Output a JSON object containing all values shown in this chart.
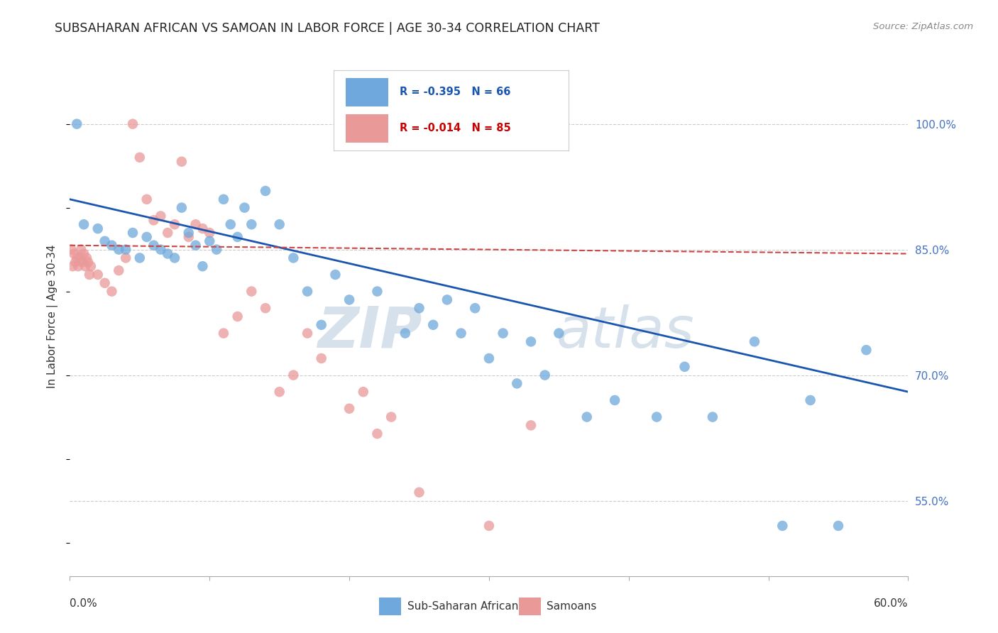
{
  "title": "SUBSAHARAN AFRICAN VS SAMOAN IN LABOR FORCE | AGE 30-34 CORRELATION CHART",
  "source": "Source: ZipAtlas.com",
  "ylabel": "In Labor Force | Age 30-34",
  "yticks": [
    55.0,
    70.0,
    85.0,
    100.0
  ],
  "ytick_labels": [
    "55.0%",
    "70.0%",
    "85.0%",
    "100.0%"
  ],
  "legend_blue_label": "Sub-Saharan Africans",
  "legend_pink_label": "Samoans",
  "legend_blue_r": "R = -0.395",
  "legend_blue_n": "N = 66",
  "legend_pink_r": "R = -0.014",
  "legend_pink_n": "N = 85",
  "blue_color": "#6fa8dc",
  "pink_color": "#ea9999",
  "blue_line_color": "#1a56b0",
  "pink_line_color": "#cc4444",
  "watermark_zip": "ZIP",
  "watermark_atlas": "atlas",
  "blue_scatter_x": [
    0.5,
    1.0,
    2.0,
    2.5,
    3.0,
    3.5,
    4.0,
    4.5,
    5.0,
    5.5,
    6.0,
    6.5,
    7.0,
    7.5,
    8.0,
    8.5,
    9.0,
    9.5,
    10.0,
    10.5,
    11.0,
    11.5,
    12.0,
    12.5,
    13.0,
    14.0,
    15.0,
    16.0,
    17.0,
    18.0,
    19.0,
    20.0,
    22.0,
    24.0,
    25.0,
    26.0,
    27.0,
    28.0,
    29.0,
    30.0,
    31.0,
    32.0,
    33.0,
    34.0,
    35.0,
    37.0,
    39.0,
    42.0,
    44.0,
    46.0,
    49.0,
    51.0,
    53.0,
    55.0,
    57.0
  ],
  "blue_scatter_y": [
    100.0,
    88.0,
    87.5,
    86.0,
    85.5,
    85.0,
    85.0,
    87.0,
    84.0,
    86.5,
    85.5,
    85.0,
    84.5,
    84.0,
    90.0,
    87.0,
    85.5,
    83.0,
    86.0,
    85.0,
    91.0,
    88.0,
    86.5,
    90.0,
    88.0,
    92.0,
    88.0,
    84.0,
    80.0,
    76.0,
    82.0,
    79.0,
    80.0,
    75.0,
    78.0,
    76.0,
    79.0,
    75.0,
    78.0,
    72.0,
    75.0,
    69.0,
    74.0,
    70.0,
    75.0,
    65.0,
    67.0,
    65.0,
    71.0,
    65.0,
    74.0,
    52.0,
    67.0,
    52.0,
    73.0
  ],
  "pink_scatter_x": [
    0.1,
    0.2,
    0.3,
    0.4,
    0.5,
    0.6,
    0.7,
    0.8,
    0.9,
    1.0,
    1.1,
    1.2,
    1.3,
    1.4,
    1.5,
    2.0,
    2.5,
    3.0,
    3.5,
    4.0,
    4.5,
    5.0,
    5.5,
    6.0,
    6.5,
    7.0,
    7.5,
    8.0,
    8.5,
    9.0,
    9.5,
    10.0,
    11.0,
    12.0,
    13.0,
    14.0,
    15.0,
    16.0,
    17.0,
    18.0,
    20.0,
    21.0,
    22.0,
    23.0,
    25.0,
    30.0,
    33.0
  ],
  "pink_scatter_y": [
    85.0,
    83.0,
    84.5,
    83.5,
    84.0,
    83.0,
    84.0,
    85.0,
    83.5,
    84.5,
    83.0,
    84.0,
    83.5,
    82.0,
    83.0,
    82.0,
    81.0,
    80.0,
    82.5,
    84.0,
    100.0,
    96.0,
    91.0,
    88.5,
    89.0,
    87.0,
    88.0,
    95.5,
    86.5,
    88.0,
    87.5,
    87.0,
    75.0,
    77.0,
    80.0,
    78.0,
    68.0,
    70.0,
    75.0,
    72.0,
    66.0,
    68.0,
    63.0,
    65.0,
    56.0,
    52.0,
    64.0
  ],
  "xmin": 0.0,
  "xmax": 60.0,
  "ymin": 46.0,
  "ymax": 108.0,
  "blue_trend_x": [
    0.0,
    60.0
  ],
  "blue_trend_y": [
    91.0,
    68.0
  ],
  "pink_trend_x": [
    0.0,
    60.0
  ],
  "pink_trend_y": [
    85.5,
    84.5
  ]
}
